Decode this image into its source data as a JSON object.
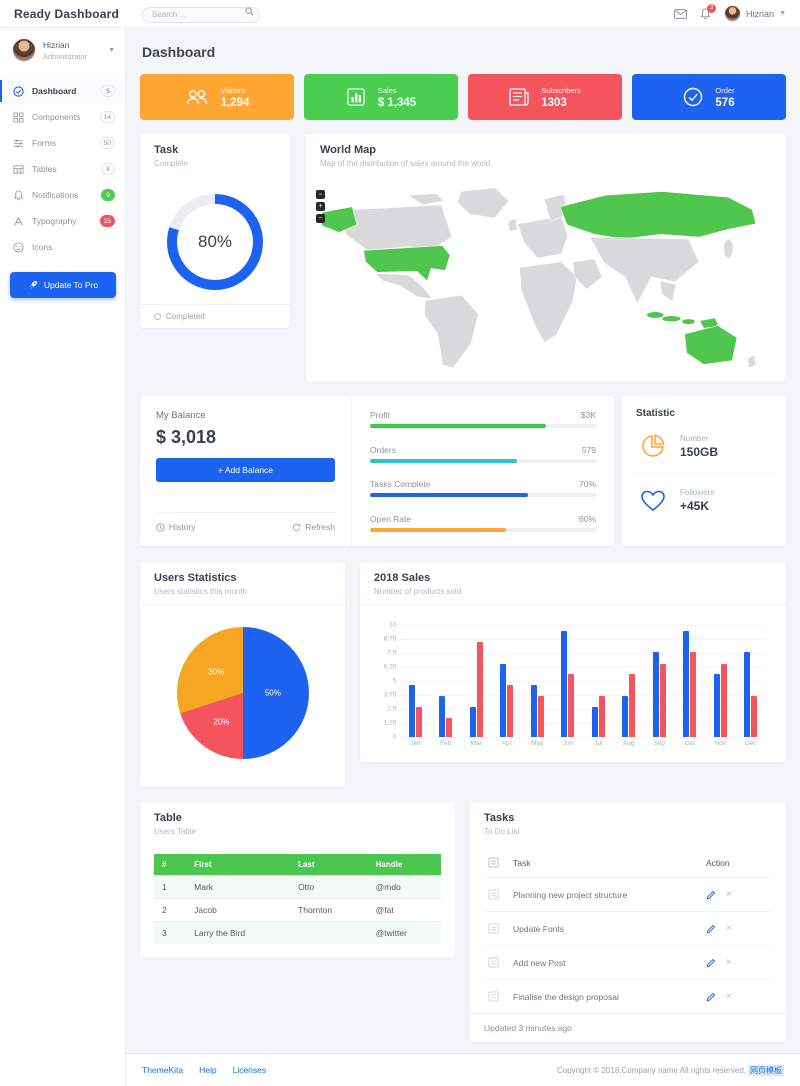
{
  "app": {
    "brand": "Ready Dashboard",
    "page_title": "Dashboard"
  },
  "header": {
    "search_placeholder": "Search ...",
    "notification_count": "3",
    "user_name": "Hizrian"
  },
  "sidebar": {
    "user": {
      "name": "Hizrian",
      "role": "Administrator"
    },
    "items": [
      {
        "label": "Dashboard",
        "badge": "5"
      },
      {
        "label": "Components",
        "badge": "14"
      },
      {
        "label": "Forms",
        "badge": "50"
      },
      {
        "label": "Tables",
        "badge": "8"
      },
      {
        "label": "Notifications",
        "badge": "9"
      },
      {
        "label": "Typography",
        "badge": "25"
      },
      {
        "label": "Icons",
        "badge": ""
      }
    ],
    "upgrade_button": "Update To Pro"
  },
  "stat_cards": [
    {
      "label": "Visitors",
      "value": "1,294",
      "color": "#ffa534",
      "icon": "users-icon"
    },
    {
      "label": "Sales",
      "value": "$ 1,345",
      "color": "#4ace4f",
      "icon": "bar-chart-icon"
    },
    {
      "label": "Subscribers",
      "value": "1303",
      "color": "#f3545d",
      "icon": "newspaper-icon"
    },
    {
      "label": "Order",
      "value": "576",
      "color": "#1d62f0",
      "icon": "check-circle-icon"
    }
  ],
  "task_card": {
    "title": "Task",
    "subtitle": "Complete",
    "percent_label": "80%",
    "percent": 80,
    "legend": "Completed",
    "donut_color": "#1d62f0",
    "track_color": "#e9ecf0"
  },
  "map_card": {
    "title": "World Map",
    "subtitle": "Map of the distribution of sales around the world",
    "zoom_buttons": [
      "▫",
      "+",
      "−"
    ]
  },
  "balance_card": {
    "title": "My Balance",
    "amount": "$ 3,018",
    "add_button": "+ Add Balance",
    "history": "History",
    "refresh": "Refresh"
  },
  "progress_list": [
    {
      "label": "Profit",
      "value": "$3K",
      "percent": 78,
      "color": "#38cd42"
    },
    {
      "label": "Orders",
      "value": "579",
      "percent": 65,
      "color": "#2bc0d4"
    },
    {
      "label": "Tasks Complete",
      "value": "70%",
      "percent": 70,
      "color": "#1d62f0"
    },
    {
      "label": "Open Rate",
      "value": "60%",
      "percent": 60,
      "color": "#ffa534"
    }
  ],
  "statistic_card": {
    "title": "Statistic",
    "stats": [
      {
        "label": "Number",
        "value": "150GB",
        "icon": "pie-icon",
        "color": "#ffa534"
      },
      {
        "label": "Followers",
        "value": "+45K",
        "icon": "heart-icon",
        "color": "#1d62f0"
      }
    ]
  },
  "users_statistics_card": {
    "title": "Users Statistics",
    "subtitle": "Users statistics this month"
  },
  "sales_card": {
    "title": "2018 Sales",
    "subtitle": "Number of products sold"
  },
  "chart_data": [
    {
      "type": "pie",
      "title": "Users Statistics",
      "slices": [
        {
          "label": "50%",
          "value": 50,
          "color": "#1d62f0"
        },
        {
          "label": "20%",
          "value": 20,
          "color": "#f3545d"
        },
        {
          "label": "30%",
          "value": 30,
          "color": "#f5a623"
        }
      ],
      "label_positions": [
        {
          "x": "73%",
          "y": "50%"
        },
        {
          "x": "34%",
          "y": "72%"
        },
        {
          "x": "30%",
          "y": "34%"
        }
      ]
    },
    {
      "type": "bar",
      "title": "2018 Sales",
      "categories": [
        "Jan",
        "Feb",
        "Mar",
        "Apr",
        "May",
        "Jun",
        "Jul",
        "Aug",
        "Sep",
        "Oct",
        "Nov",
        "Dec"
      ],
      "series": [
        {
          "name": "series-blue",
          "color": "#1d62f0",
          "values": [
            4.6,
            3.7,
            2.7,
            6.5,
            4.6,
            9.5,
            2.7,
            3.7,
            7.6,
            9.5,
            5.6,
            7.6
          ]
        },
        {
          "name": "series-red",
          "color": "#f3545d",
          "values": [
            2.7,
            1.7,
            8.5,
            4.6,
            3.7,
            5.6,
            3.7,
            5.6,
            6.5,
            7.6,
            6.5,
            3.7
          ]
        }
      ],
      "ylim": [
        0,
        10
      ],
      "yticks": [
        0,
        1.25,
        2.5,
        3.75,
        5,
        6.25,
        7.5,
        8.75,
        10
      ],
      "grid": true,
      "legend": "none"
    }
  ],
  "map_highlight_color": "#50c64e",
  "map_base_color": "#d8dadc",
  "table_card": {
    "title": "Table",
    "subtitle": "Users Table",
    "headers": [
      "#",
      "First",
      "Last",
      "Handle"
    ],
    "rows": [
      [
        "1",
        "Mark",
        "Otto",
        "@mdo"
      ],
      [
        "2",
        "Jacob",
        "Thornton",
        "@fat"
      ],
      [
        "3",
        "Larry the Bird",
        "",
        "@twitter"
      ]
    ]
  },
  "tasks_card": {
    "title": "Tasks",
    "subtitle": "To Do List",
    "col_task": "Task",
    "col_action": "Action",
    "items": [
      {
        "text": "Planning new project structure"
      },
      {
        "text": "Update Fonts"
      },
      {
        "text": "Add new Post"
      },
      {
        "text": "Finalise the design proposal"
      }
    ],
    "footer": "Updated 3 minutes ago"
  },
  "footer": {
    "links": [
      "ThemeKita",
      "Help",
      "Licenses"
    ],
    "copyright": "Copyright © 2018,Company name All rights reserved.",
    "watermark": "网页模板"
  }
}
